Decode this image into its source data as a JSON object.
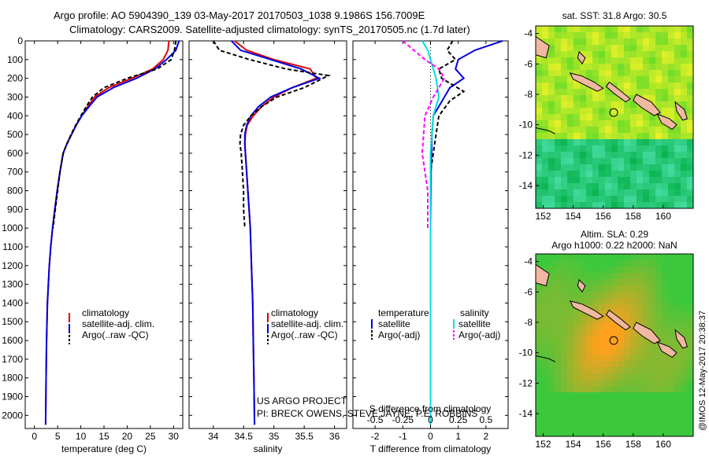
{
  "header": {
    "line1": "Argo profile: AO 5904390_139 03-May-2017 20170503_1038 9.1986S 156.7009E",
    "line2": "Climatology: CARS2009. Satellite-adjusted climatology: synTS_20170505.nc (1.7d later)"
  },
  "credits": {
    "line1": "US ARGO PROJECT",
    "line2": "PI: BRECK OWENS, STEVE JAYNE, P.E. ROBBINS"
  },
  "timestamp": "@IMOS 12-May-2017 20:38:37",
  "colors": {
    "clim": "#e00000",
    "sat": "#0000e0",
    "argo": "#000000",
    "sal_sat": "#00e0e0",
    "sal_argo": "#ff00ff"
  },
  "map_top": {
    "title": "sat. SST: 31.8 Argo: 30.5",
    "xticks": [
      "152",
      "154",
      "156",
      "158",
      "160"
    ],
    "yticks": [
      "-4",
      "-6",
      "-8",
      "-10",
      "-12",
      "-14"
    ],
    "palette": "green-yellow SST field",
    "marker": {
      "lon": 156.7009,
      "lat": -9.1986
    }
  },
  "map_bottom": {
    "title1": "Altim. SLA: 0.29",
    "title2": "Argo h1000: 0.22 h2000: NaN",
    "xticks": [
      "152",
      "154",
      "156",
      "158",
      "160"
    ],
    "yticks": [
      "-4",
      "-6",
      "-8",
      "-10",
      "-12",
      "-14"
    ],
    "palette": "green-orange SLA field",
    "marker": {
      "lon": 156.7009,
      "lat": -9.1986
    }
  },
  "chart_data": [
    {
      "type": "line",
      "xlabel": "temperature (deg C)",
      "xlim": [
        -2,
        32
      ],
      "ylim": [
        2070,
        0
      ],
      "xticks": [
        0,
        5,
        10,
        15,
        20,
        25,
        30
      ],
      "yticks": [
        0,
        100,
        200,
        300,
        400,
        500,
        600,
        700,
        800,
        900,
        1000,
        1100,
        1200,
        1300,
        1400,
        1500,
        1600,
        1700,
        1800,
        1900,
        2000
      ],
      "legend": [
        "climatology",
        "satellite-adj. clim.",
        "Argo(..raw -QC)"
      ],
      "series": [
        {
          "name": "climatology",
          "color": "#e00000",
          "dash": "solid",
          "x": [
            29.0,
            28.8,
            27.8,
            25.5,
            21.0,
            16.0,
            13.0,
            11.5,
            10.2,
            9.0,
            8.0,
            7.0,
            6.2,
            5.5,
            4.9,
            4.4,
            3.9,
            3.5,
            3.2,
            3.0,
            2.8,
            2.6,
            2.5,
            2.4
          ],
          "y": [
            0,
            50,
            100,
            150,
            200,
            250,
            300,
            350,
            400,
            450,
            500,
            550,
            600,
            700,
            800,
            900,
            1000,
            1100,
            1200,
            1300,
            1400,
            1600,
            1800,
            2050
          ]
        },
        {
          "name": "satellite-adj. clim.",
          "color": "#0000e0",
          "dash": "solid",
          "x": [
            31.2,
            30.5,
            28.5,
            26.0,
            22.0,
            17.0,
            13.5,
            11.8,
            10.2,
            9.0,
            8.0,
            7.0,
            6.2,
            5.5,
            4.9,
            4.4,
            3.9,
            3.5,
            3.2,
            3.0,
            2.8,
            2.6,
            2.5,
            2.4
          ],
          "y": [
            0,
            50,
            100,
            150,
            200,
            250,
            300,
            350,
            400,
            450,
            500,
            550,
            600,
            700,
            800,
            900,
            1000,
            1100,
            1200,
            1300,
            1400,
            1600,
            1800,
            2050
          ]
        },
        {
          "name": "Argo(..raw -QC)",
          "color": "#000000",
          "dash": "dashed",
          "x": [
            30.5,
            30.2,
            29.5,
            26.5,
            20.0,
            15.0,
            12.5,
            11.2,
            10.0,
            8.9,
            7.9,
            7.0,
            6.2,
            5.5,
            5.0,
            4.5,
            4.0
          ],
          "y": [
            0,
            50,
            100,
            150,
            200,
            250,
            300,
            350,
            400,
            450,
            500,
            550,
            600,
            700,
            800,
            900,
            1000
          ]
        }
      ]
    },
    {
      "type": "line",
      "xlabel": "salinity",
      "xlim": [
        33.6,
        36.2
      ],
      "ylim": [
        2070,
        0
      ],
      "xticks": [
        34,
        34.5,
        35,
        35.5,
        36
      ],
      "legend": [
        "climatology",
        "satellite-adj. clim.",
        "Argo(..raw -QC)"
      ],
      "series": [
        {
          "name": "climatology",
          "color": "#e00000",
          "dash": "solid",
          "x": [
            34.35,
            34.55,
            35.0,
            35.6,
            35.7,
            35.3,
            35.0,
            34.8,
            34.66,
            34.56,
            34.53,
            34.52,
            34.53,
            34.55,
            34.57,
            34.59,
            34.61,
            34.63,
            34.65,
            34.66,
            34.67,
            34.68
          ],
          "y": [
            0,
            50,
            100,
            150,
            200,
            250,
            300,
            350,
            400,
            450,
            500,
            550,
            600,
            700,
            800,
            900,
            1000,
            1200,
            1400,
            1600,
            1800,
            2050
          ]
        },
        {
          "name": "satellite-adj. clim.",
          "color": "#0000e0",
          "dash": "solid",
          "x": [
            34.3,
            34.45,
            34.95,
            35.45,
            35.75,
            35.3,
            34.95,
            34.75,
            34.62,
            34.55,
            34.52,
            34.52,
            34.53,
            34.55,
            34.57,
            34.59,
            34.61,
            34.63,
            34.65,
            34.66,
            34.67,
            34.68
          ],
          "y": [
            0,
            50,
            100,
            150,
            200,
            250,
            300,
            350,
            400,
            450,
            500,
            550,
            600,
            700,
            800,
            900,
            1000,
            1200,
            1400,
            1600,
            1800,
            2050
          ]
        },
        {
          "name": "Argo(..raw -QC)",
          "color": "#000000",
          "dash": "dashed",
          "x": [
            34.0,
            34.1,
            34.6,
            35.2,
            35.9,
            35.5,
            35.05,
            34.8,
            34.62,
            34.5,
            34.45,
            34.44,
            34.46,
            34.48,
            34.5,
            34.5,
            34.52
          ],
          "y": [
            0,
            50,
            100,
            150,
            185,
            250,
            300,
            350,
            400,
            450,
            500,
            550,
            600,
            700,
            800,
            900,
            1000
          ]
        }
      ]
    },
    {
      "type": "line",
      "xlabel": "T difference from climatology",
      "xlabel_top": "S difference from climatology",
      "xlim": [
        -2.8,
        2.8
      ],
      "ylim": [
        2070,
        0
      ],
      "xticks": [
        -2,
        -1,
        0,
        1,
        2
      ],
      "xticks_top": [
        "-0.5",
        "-0.25",
        "0",
        "0.25",
        "0.5"
      ],
      "legend_title_left": "temperature",
      "legend_title_right": "salinity",
      "legend_left": [
        "satellite",
        "Argo(-adj)"
      ],
      "legend_right": [
        "satellite",
        "Argo(-adj)"
      ],
      "series": [
        {
          "name": "satellite",
          "group": "temperature",
          "color": "#0000e0",
          "dash": "solid",
          "x": [
            2.6,
            1.6,
            1.0,
            0.9,
            1.2,
            0.7,
            0.5,
            0.3,
            0.1,
            0.05,
            0.02,
            0.0,
            0.0
          ],
          "y": [
            0,
            50,
            100,
            150,
            200,
            250,
            300,
            350,
            400,
            500,
            700,
            1000,
            2050
          ]
        },
        {
          "name": "Argo(-adj)",
          "group": "temperature",
          "color": "#000000",
          "dash": "dashed",
          "x": [
            0.8,
            0.6,
            0.9,
            0.3,
            0.4,
            1.2,
            0.7,
            0.3,
            0.2,
            0.1,
            0.0,
            0.0,
            0.0
          ],
          "y": [
            0,
            50,
            100,
            150,
            200,
            270,
            320,
            400,
            500,
            600,
            700,
            850,
            1000
          ]
        },
        {
          "name": "satellite",
          "group": "salinity",
          "color": "#00e0e0",
          "dash": "solid",
          "x": [
            -0.3,
            -0.1,
            0.0,
            0.1,
            0.2,
            0.3,
            0.1,
            0.0,
            0.0
          ],
          "y": [
            0,
            50,
            100,
            150,
            200,
            300,
            400,
            600,
            2050
          ]
        },
        {
          "name": "Argo(-adj)",
          "group": "salinity",
          "color": "#ff00ff",
          "dash": "dashed",
          "x": [
            -1.0,
            -0.6,
            -0.2,
            0.3,
            0.5,
            0.1,
            -0.2,
            -0.3,
            -0.1,
            -0.1
          ],
          "y": [
            0,
            50,
            100,
            150,
            200,
            300,
            400,
            600,
            800,
            1000
          ]
        }
      ]
    }
  ]
}
